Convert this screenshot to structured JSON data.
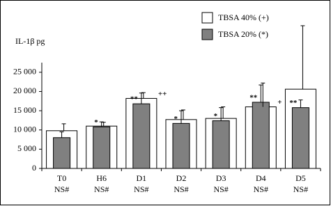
{
  "chart_data": {
    "type": "bar",
    "y_label": "IL-1β pg",
    "categories": [
      "T0",
      "H6",
      "D1",
      "D2",
      "D3",
      "D4",
      "D5"
    ],
    "sublabels": [
      "NS#",
      "NS#",
      "NS#",
      "NS#",
      "NS#",
      "NS#",
      "NS#"
    ],
    "series": [
      {
        "name": "TBSA 40% (+)",
        "color": "#ffffff",
        "values": [
          9800,
          11000,
          18200,
          12700,
          13000,
          16000,
          20600
        ],
        "errors": [
          1800,
          1000,
          1500,
          2500,
          3000,
          6200,
          16500
        ],
        "labels": [
          null,
          null,
          "++",
          null,
          null,
          "+",
          null
        ]
      },
      {
        "name": "TBSA 20% (*)",
        "color": "#808080",
        "values": [
          8000,
          10800,
          16800,
          11700,
          12400,
          17200,
          15800
        ],
        "errors": [
          1500,
          1300,
          2800,
          3300,
          3400,
          4500,
          2000
        ],
        "labels": [
          null,
          "*",
          "**",
          "*",
          "*",
          "**",
          "**"
        ]
      }
    ],
    "ylim": [
      0,
      27500
    ],
    "yticks": [
      0,
      {
        "value": 5000,
        "label": "5 000"
      },
      {
        "value": 10000,
        "label": "10 000"
      },
      {
        "value": 15000,
        "label": "15 000"
      },
      {
        "value": 20000,
        "label": "20 000"
      },
      {
        "value": 25000,
        "label": "25 000"
      }
    ]
  }
}
